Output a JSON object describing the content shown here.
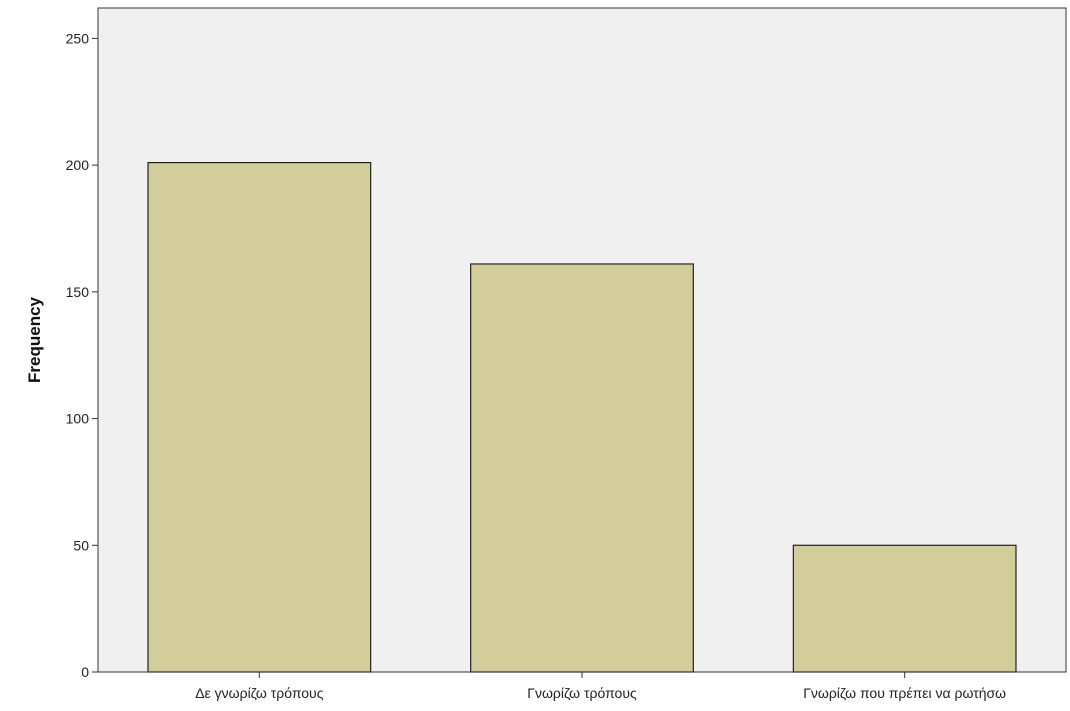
{
  "chart_data": {
    "type": "bar",
    "title": "",
    "xlabel": "",
    "ylabel": "Frequency",
    "categories": [
      "Δε γνωρίζω τρόπους",
      "Γνωρίζω τρόπους",
      "Γνωρίζω που πρέπει να ρωτήσω"
    ],
    "values": [
      201,
      161,
      50
    ],
    "ylim": [
      0,
      262
    ],
    "yticks": [
      0,
      50,
      100,
      150,
      200,
      250
    ],
    "grid": false,
    "legend": "none",
    "colors": {
      "bar_fill": "#d3ce99",
      "bar_stroke": "#222222",
      "plot_background": "#f0f0f0",
      "axis": "#333333"
    }
  }
}
